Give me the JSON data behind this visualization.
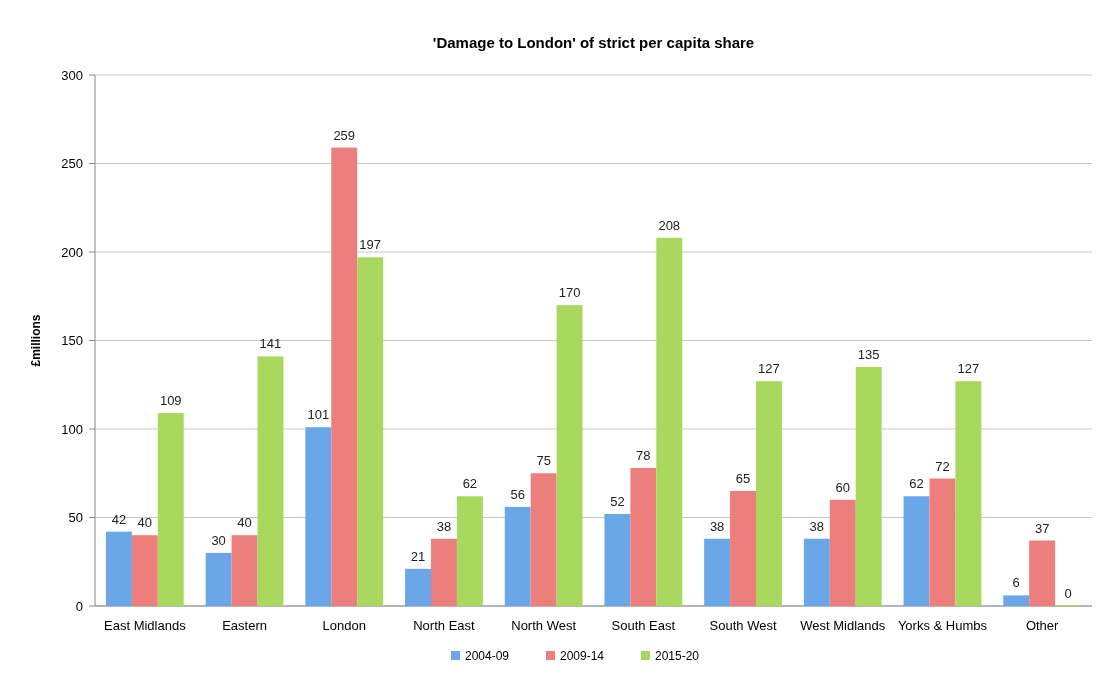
{
  "chart_data": {
    "type": "bar",
    "title": "'Damage to London' of strict per capita share",
    "ylabel": "£millions",
    "categories": [
      "East Midlands",
      "Eastern",
      "London",
      "North East",
      "North West",
      "South East",
      "South West",
      "West Midlands",
      "Yorks & Humbs",
      "Other"
    ],
    "series": [
      {
        "name": "2004-09",
        "color": "#6aa6e8",
        "values": [
          42,
          30,
          101,
          21,
          56,
          52,
          38,
          38,
          62,
          6
        ]
      },
      {
        "name": "2009-14",
        "color": "#ec7f7c",
        "values": [
          40,
          40,
          259,
          38,
          75,
          78,
          65,
          60,
          72,
          37
        ]
      },
      {
        "name": "2015-20",
        "color": "#a8d85e",
        "values": [
          109,
          141,
          197,
          62,
          170,
          208,
          127,
          135,
          127,
          0
        ]
      }
    ],
    "ylim": [
      0,
      300
    ],
    "yticks": [
      0,
      50,
      100,
      150,
      200,
      250,
      300
    ],
    "grid": "y",
    "legend": "bottom",
    "data_labels": true
  }
}
